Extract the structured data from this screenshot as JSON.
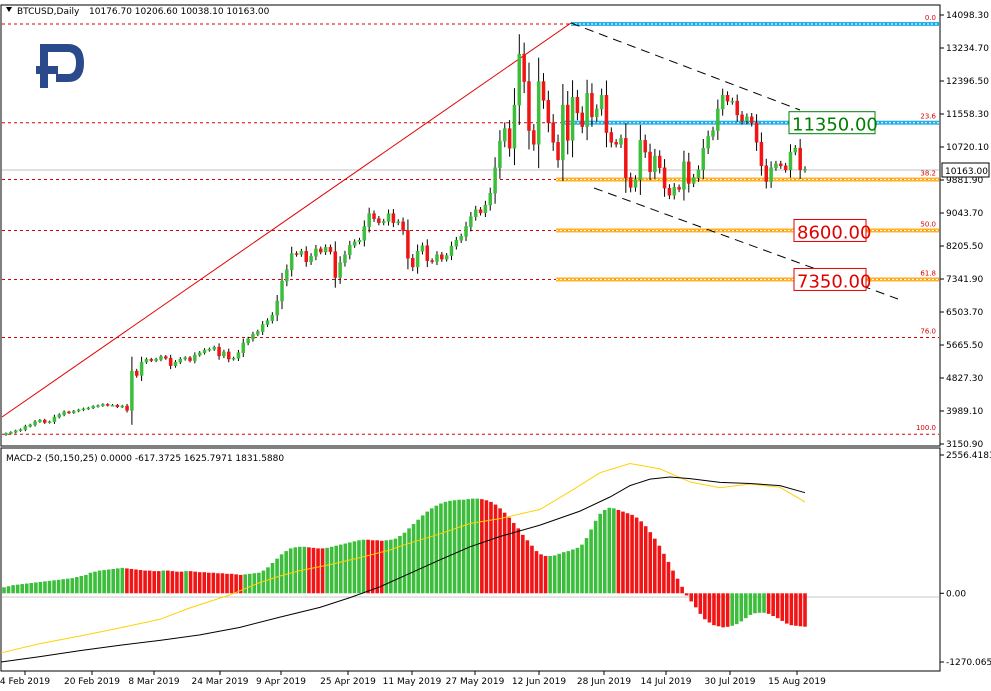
{
  "header": {
    "symbol": "BTCUSD,Daily",
    "ohlc": "10176.70 10206.60 10038.10 10163.00"
  },
  "macd_header": "MACD-2 (50,150,25) 0.0000 -617.3725 1625.7971 1831.5880",
  "colors": {
    "bull": "#3cbe3c",
    "bear": "#f01414",
    "fib_line": "#dc0000",
    "blue_level": "#00a5e6",
    "orange_level": "#ffa500",
    "green_label": "#008000",
    "red_label": "#e10000",
    "macd_line": "#000000",
    "signal_line": "#ffd200",
    "logo": "#2a4a8c"
  },
  "chart_data": [
    {
      "type": "candlestick",
      "title": "BTCUSD,Daily",
      "ohlc_last": {
        "open": 10176.7,
        "high": 10206.6,
        "low": 10038.1,
        "close": 10163.0
      },
      "y_ticks": [
        "14098.30",
        "13234.70",
        "12396.50",
        "11558.30",
        "10720.10",
        "9881.90",
        "9043.70",
        "8205.50",
        "7341.90",
        "6503.70",
        "5665.50",
        "4827.30",
        "3989.10",
        "3150.90"
      ],
      "last_price": "10163.00",
      "ylim": [
        3150.9,
        14098.3
      ],
      "x_labels": [
        "4 Feb 2019",
        "20 Feb 2019",
        "8 Mar 2019",
        "24 Mar 2019",
        "9 Apr 2019",
        "25 Apr 2019",
        "11 May 2019",
        "27 May 2019",
        "12 Jun 2019",
        "28 Jun 2019",
        "14 Jul 2019",
        "30 Jul 2019",
        "15 Aug 2019"
      ],
      "fib_levels": [
        {
          "label": "0.0",
          "price": 13870
        },
        {
          "label": "23.6",
          "price": 11350
        },
        {
          "label": "38.2",
          "price": 9900
        },
        {
          "label": "50.0",
          "price": 8600
        },
        {
          "label": "61.8",
          "price": 7350
        },
        {
          "label": "76.0",
          "price": 5870
        },
        {
          "label": "100.0",
          "price": 3400
        }
      ],
      "price_labels": [
        "11350.00",
        "8600.00",
        "7350.00"
      ],
      "closes": [
        3420,
        3450,
        3490,
        3520,
        3600,
        3640,
        3720,
        3760,
        3700,
        3720,
        3840,
        3900,
        3970,
        3950,
        3990,
        4020,
        4050,
        4070,
        4110,
        4130,
        4160,
        4140,
        4140,
        4100,
        4120,
        4010,
        5010,
        4900,
        5240,
        5310,
        5280,
        5310,
        5380,
        5340,
        5150,
        5240,
        5320,
        5350,
        5280,
        5420,
        5480,
        5550,
        5570,
        5620,
        5400,
        5500,
        5320,
        5340,
        5480,
        5730,
        5830,
        5950,
        6020,
        6200,
        6300,
        6440,
        6800,
        7310,
        7600,
        8010,
        7990,
        8070,
        7800,
        7940,
        8130,
        8050,
        8170,
        8060,
        7400,
        7780,
        7980,
        8220,
        8310,
        8350,
        8700,
        9030,
        8900,
        8800,
        8830,
        9030,
        8800,
        8820,
        8600,
        7890,
        7670,
        8070,
        8210,
        7830,
        7810,
        7980,
        7870,
        7960,
        8200,
        8350,
        8450,
        8700,
        8950,
        9130,
        9050,
        9250,
        9550,
        10200,
        10880,
        11200,
        10700,
        11800,
        13100,
        12400,
        11150,
        10800,
        12400,
        11920,
        11350,
        10850,
        10400,
        11800,
        10900,
        12000,
        11600,
        11250,
        12100,
        11500,
        11700,
        12050,
        11100,
        10850,
        10800,
        10950,
        9950,
        9700,
        9900,
        10900,
        10600,
        10100,
        10500,
        10200,
        9680,
        9500,
        9700,
        9650,
        10350,
        9800,
        9950,
        10150,
        10700,
        11000,
        11150,
        11700,
        12050,
        11900,
        11900,
        11550,
        11400,
        11500,
        11350,
        10850,
        10250,
        9850,
        10200,
        10300,
        10250,
        10150,
        10600,
        10700,
        10150,
        10163
      ],
      "trendlines": [
        {
          "from": [
            "28 Jun 2019",
            13870
          ],
          "to": [
            "mid Aug 2019",
            11500
          ]
        },
        {
          "from": [
            "28 Jun 2019",
            9600
          ],
          "to": [
            "late Aug 2019",
            6900
          ]
        }
      ]
    },
    {
      "type": "bar+line",
      "title": "MACD-2 (50,150,25)",
      "series": [
        {
          "name": "0.0000",
          "values": [
            0
          ]
        },
        {
          "name": "-617.3725",
          "values": [
            -617.3725
          ]
        },
        {
          "name": "1625.7971",
          "values": [
            1625.7971
          ]
        },
        {
          "name": "1831.5880",
          "values": [
            1831.588
          ]
        }
      ],
      "y_ticks": [
        "2556.4183",
        "0.00",
        "-1270.0652"
      ],
      "ylim": [
        -1270.0652,
        2556.4183
      ],
      "hist": [
        110,
        130,
        150,
        160,
        170,
        180,
        190,
        200,
        210,
        220,
        230,
        240,
        250,
        260,
        270,
        280,
        300,
        320,
        340,
        380,
        400,
        420,
        430,
        440,
        450,
        460,
        470,
        460,
        450,
        440,
        430,
        420,
        420,
        410,
        410,
        420,
        420,
        410,
        400,
        400,
        410,
        410,
        400,
        390,
        390,
        380,
        380,
        370,
        370,
        360,
        360,
        350,
        340,
        350,
        360,
        370,
        380,
        420,
        480,
        560,
        640,
        720,
        780,
        830,
        850,
        860,
        860,
        850,
        840,
        830,
        830,
        840,
        860,
        880,
        900,
        920,
        940,
        960,
        980,
        990,
        990,
        980,
        980,
        970,
        980,
        990,
        1010,
        1060,
        1120,
        1200,
        1280,
        1360,
        1440,
        1510,
        1570,
        1620,
        1660,
        1690,
        1710,
        1720,
        1730,
        1730,
        1740,
        1750,
        1750,
        1740,
        1720,
        1690,
        1640,
        1570,
        1490,
        1400,
        1300,
        1200,
        1080,
        980,
        880,
        780,
        720,
        690,
        690,
        700,
        730,
        760,
        780,
        810,
        840,
        900,
        1020,
        1180,
        1340,
        1470,
        1540,
        1580,
        1570,
        1540,
        1510,
        1480,
        1450,
        1400,
        1330,
        1240,
        1130,
        1010,
        880,
        730,
        580,
        420,
        270,
        120,
        -40,
        -150,
        -260,
        -380,
        -480,
        -540,
        -590,
        -610,
        -630,
        -620,
        -600,
        -570,
        -520,
        -460,
        -400,
        -370,
        -360,
        -360,
        -380,
        -420,
        -460,
        -510,
        -560,
        -590,
        -600,
        -610,
        -617
      ],
      "hist_bull": [
        true,
        true,
        true,
        true,
        true,
        true,
        true,
        true,
        true,
        true,
        true,
        true,
        true,
        true,
        true,
        true,
        true,
        true,
        true,
        true,
        true,
        true,
        true,
        true,
        true,
        true,
        true,
        false,
        false,
        false,
        false,
        false,
        false,
        false,
        false,
        true,
        false,
        false,
        false,
        false,
        true,
        false,
        false,
        false,
        false,
        false,
        false,
        false,
        false,
        false,
        false,
        false,
        false,
        true,
        true,
        true,
        true,
        true,
        true,
        true,
        true,
        true,
        true,
        true,
        true,
        true,
        true,
        false,
        false,
        false,
        false,
        true,
        true,
        true,
        true,
        true,
        true,
        true,
        true,
        true,
        false,
        false,
        false,
        false,
        true,
        true,
        true,
        true,
        true,
        true,
        true,
        true,
        true,
        true,
        true,
        true,
        true,
        true,
        true,
        true,
        true,
        true,
        true,
        true,
        true,
        false,
        false,
        false,
        false,
        false,
        false,
        false,
        false,
        false,
        false,
        false,
        false,
        false,
        false,
        false,
        true,
        true,
        true,
        true,
        true,
        true,
        true,
        true,
        true,
        true,
        true,
        true,
        true,
        true,
        true,
        false,
        false,
        false,
        false,
        false,
        false,
        false,
        false,
        false,
        false,
        false,
        false,
        false,
        false,
        false,
        false,
        false,
        false,
        false,
        false,
        false,
        false,
        false,
        false,
        false,
        true,
        true,
        true,
        true,
        true,
        true,
        true,
        true,
        false,
        false,
        false,
        false,
        false,
        false,
        false,
        false,
        false,
        false,
        false
      ],
      "signal_pts": [
        [
          1,
          -1100
        ],
        [
          40,
          -930
        ],
        [
          80,
          -790
        ],
        [
          120,
          -640
        ],
        [
          160,
          -480
        ],
        [
          190,
          -270
        ],
        [
          230,
          -30
        ],
        [
          260,
          200
        ],
        [
          280,
          320
        ],
        [
          300,
          420
        ],
        [
          330,
          530
        ],
        [
          360,
          660
        ],
        [
          390,
          800
        ],
        [
          400,
          870
        ],
        [
          440,
          1100
        ],
        [
          470,
          1290
        ],
        [
          500,
          1380
        ],
        [
          540,
          1550
        ],
        [
          570,
          1880
        ],
        [
          600,
          2230
        ],
        [
          630,
          2400
        ],
        [
          660,
          2300
        ],
        [
          690,
          2060
        ],
        [
          720,
          1950
        ],
        [
          750,
          2020
        ],
        [
          780,
          1960
        ],
        [
          805,
          1690
        ]
      ],
      "macd_pts": [
        [
          1,
          -1270
        ],
        [
          40,
          -1170
        ],
        [
          80,
          -1060
        ],
        [
          120,
          -960
        ],
        [
          160,
          -870
        ],
        [
          200,
          -770
        ],
        [
          240,
          -630
        ],
        [
          280,
          -440
        ],
        [
          320,
          -260
        ],
        [
          350,
          -80
        ],
        [
          380,
          120
        ],
        [
          410,
          370
        ],
        [
          440,
          620
        ],
        [
          470,
          860
        ],
        [
          500,
          1050
        ],
        [
          540,
          1260
        ],
        [
          580,
          1520
        ],
        [
          610,
          1780
        ],
        [
          630,
          1990
        ],
        [
          650,
          2110
        ],
        [
          670,
          2150
        ],
        [
          690,
          2120
        ],
        [
          720,
          2050
        ],
        [
          750,
          2030
        ],
        [
          780,
          1990
        ],
        [
          805,
          1860
        ]
      ]
    }
  ]
}
